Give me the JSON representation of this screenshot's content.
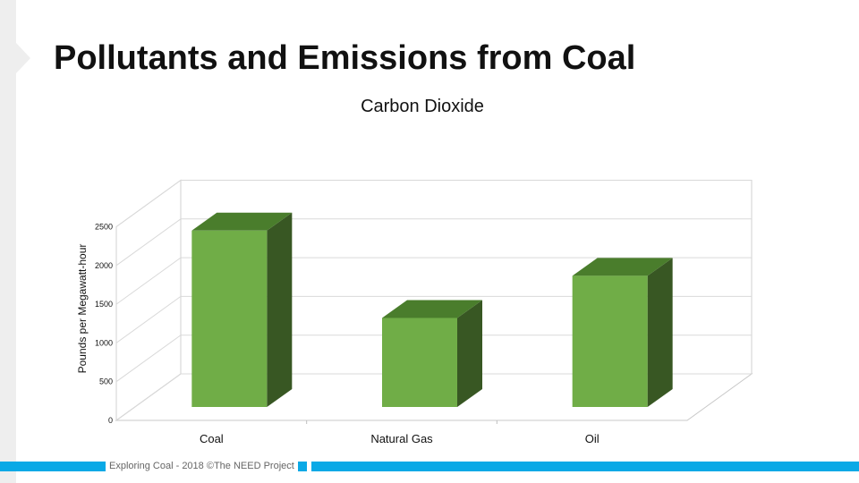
{
  "slide": {
    "title": "Pollutants and Emissions from Coal",
    "footer": "Exploring Coal - 2018 ©The NEED Project"
  },
  "colors": {
    "bar_front": "#70ad47",
    "bar_top": "#4a7d2c",
    "bar_side": "#385723",
    "accent": "#0aa9e6"
  },
  "chart_data": {
    "type": "bar",
    "title": "Carbon Dioxide",
    "ylabel": "Pounds per Megawatt-hour",
    "xlabel": "",
    "categories": [
      "Coal",
      "Natural Gas",
      "Oil"
    ],
    "values": [
      2249,
      1135,
      1672
    ],
    "ylim": [
      0,
      2500
    ],
    "yticks": [
      0,
      500,
      1000,
      1500,
      2000,
      2500
    ],
    "grid": true,
    "legend": "none",
    "style": "3d-column"
  }
}
